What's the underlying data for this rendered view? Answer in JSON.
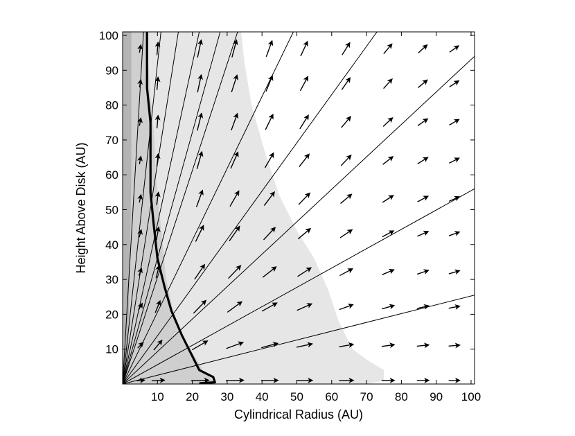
{
  "chart_data": {
    "type": "vector-field",
    "title": "",
    "xlabel": "Cylindrical Radius (AU)",
    "ylabel": "Height Above Disk (AU)",
    "xlim": [
      0,
      101
    ],
    "ylim": [
      0,
      101
    ],
    "x_ticks": [
      10,
      20,
      30,
      40,
      50,
      60,
      70,
      80,
      90,
      100
    ],
    "y_ticks": [
      10,
      20,
      30,
      40,
      50,
      60,
      70,
      80,
      90,
      100
    ],
    "grid": false,
    "legend": "none",
    "colors": {
      "region_outer": "#e6e6e6",
      "region_middle": "#cfcfcf",
      "region_inner": "#b4b4b4",
      "lines": "#000000"
    },
    "regions": [
      {
        "shade": "outer",
        "boundary": [
          [
            0,
            0
          ],
          [
            0,
            101
          ],
          [
            34,
            101
          ],
          [
            35,
            92
          ],
          [
            37,
            80
          ],
          [
            41,
            66
          ],
          [
            45,
            54
          ],
          [
            50,
            44
          ],
          [
            55,
            36
          ],
          [
            59,
            27
          ],
          [
            62,
            18
          ],
          [
            66,
            10
          ],
          [
            70,
            7
          ],
          [
            75,
            4
          ],
          [
            75,
            1
          ],
          [
            70,
            0
          ]
        ]
      },
      {
        "shade": "middle",
        "boundary": [
          [
            0,
            0
          ],
          [
            0,
            101
          ],
          [
            7,
            101
          ],
          [
            7.5,
            90
          ],
          [
            8,
            82
          ],
          [
            9,
            72
          ],
          [
            9.5,
            60
          ],
          [
            10.5,
            50
          ],
          [
            11.5,
            40
          ],
          [
            12.5,
            30
          ],
          [
            14.5,
            21
          ],
          [
            17,
            14
          ],
          [
            20,
            9
          ],
          [
            23,
            4
          ],
          [
            26,
            1
          ],
          [
            26,
            0
          ]
        ]
      },
      {
        "shade": "inner",
        "boundary": [
          [
            0,
            0
          ],
          [
            0,
            101
          ],
          [
            2.5,
            101
          ],
          [
            2.5,
            60
          ],
          [
            2,
            30
          ],
          [
            1.5,
            10
          ],
          [
            1,
            0
          ]
        ]
      }
    ],
    "streamlines_endpoints": [
      [
        6,
        101
      ],
      [
        11,
        101
      ],
      [
        16,
        101
      ],
      [
        22,
        101
      ],
      [
        28,
        101
      ],
      [
        33,
        101
      ],
      [
        49,
        101
      ],
      [
        73,
        101
      ],
      [
        101,
        94
      ],
      [
        101,
        56
      ],
      [
        101,
        25.5
      ]
    ],
    "contour_line": [
      [
        7,
        101
      ],
      [
        7,
        95
      ],
      [
        7,
        85
      ],
      [
        8,
        75
      ],
      [
        8,
        65
      ],
      [
        8,
        55
      ],
      [
        9,
        45
      ],
      [
        10,
        36
      ],
      [
        12,
        28
      ],
      [
        14,
        21
      ],
      [
        17,
        14
      ],
      [
        20,
        8
      ],
      [
        22,
        4
      ],
      [
        24,
        3
      ],
      [
        26,
        2
      ],
      [
        26.5,
        0.5
      ],
      [
        22,
        0.2
      ]
    ],
    "vectors": {
      "x_positions": [
        5,
        10,
        22,
        32,
        42,
        52,
        64,
        76,
        86,
        95
      ],
      "y_positions": [
        1,
        11,
        22,
        32,
        43,
        53,
        64,
        75,
        86,
        96
      ],
      "rows": [
        {
          "y": 96,
          "angles_deg": [
            80,
            85,
            78,
            75,
            70,
            65,
            58,
            50,
            42,
            35
          ]
        },
        {
          "y": 86,
          "angles_deg": [
            80,
            85,
            78,
            72,
            68,
            62,
            55,
            48,
            40,
            33
          ]
        },
        {
          "y": 75,
          "angles_deg": [
            80,
            85,
            76,
            70,
            64,
            58,
            50,
            43,
            35,
            30
          ]
        },
        {
          "y": 64,
          "angles_deg": [
            80,
            84,
            74,
            66,
            60,
            52,
            46,
            38,
            32,
            27
          ]
        },
        {
          "y": 53,
          "angles_deg": [
            78,
            82,
            70,
            60,
            53,
            46,
            40,
            33,
            28,
            24
          ]
        },
        {
          "y": 43,
          "angles_deg": [
            75,
            80,
            64,
            55,
            47,
            40,
            34,
            28,
            24,
            20
          ]
        },
        {
          "y": 32,
          "angles_deg": [
            70,
            76,
            56,
            46,
            38,
            33,
            28,
            23,
            19,
            16
          ]
        },
        {
          "y": 22,
          "angles_deg": [
            60,
            68,
            46,
            36,
            29,
            24,
            20,
            16,
            13,
            11
          ]
        },
        {
          "y": 11,
          "angles_deg": [
            45,
            50,
            30,
            20,
            15,
            12,
            10,
            8,
            6,
            5
          ]
        },
        {
          "y": 1,
          "angles_deg": [
            5,
            3,
            2,
            2,
            1,
            1,
            1,
            1,
            1,
            1
          ]
        }
      ],
      "magnitudes": [
        0.4,
        0.7,
        1.0,
        1.0,
        0.95,
        0.9,
        0.8,
        0.7,
        0.65,
        0.6
      ]
    }
  }
}
